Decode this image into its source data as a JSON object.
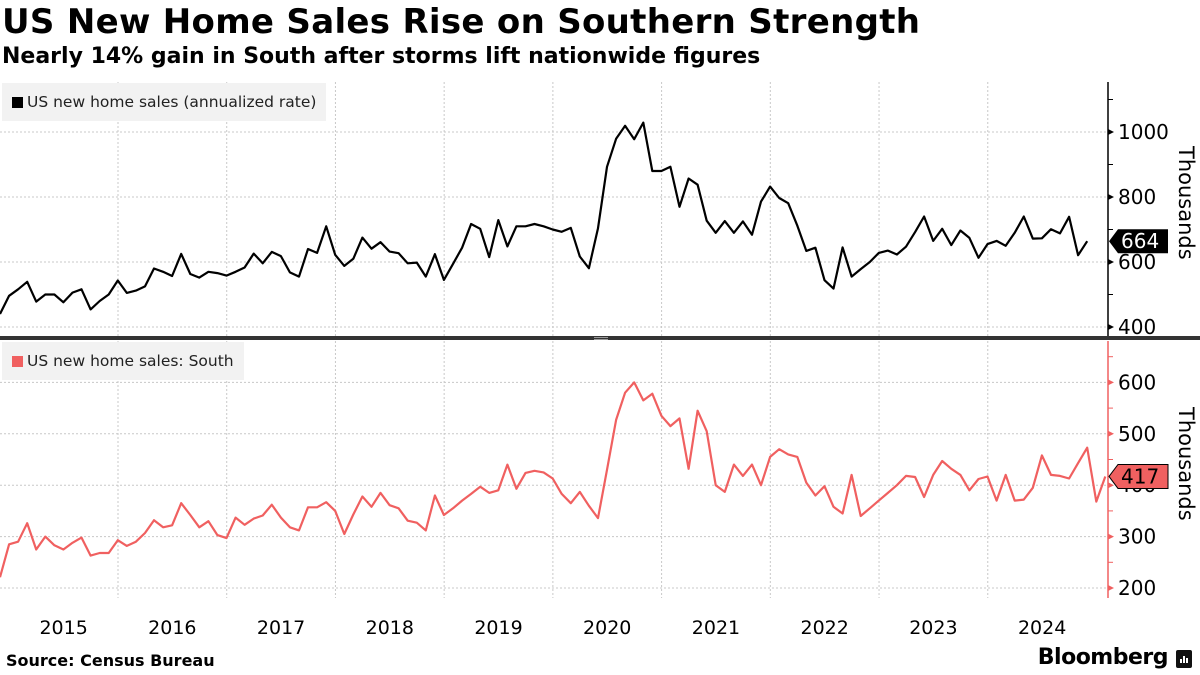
{
  "header": {
    "title": "US New Home Sales Rise on Southern Strength",
    "subtitle": "Nearly 14% gain in South after storms lift nationwide figures"
  },
  "footer": {
    "source": "Source: Census Bureau",
    "brand": "Bloomberg"
  },
  "colors": {
    "national": "#000000",
    "south": "#f06060",
    "grid": "#c8c8c8",
    "divider": "#333333"
  },
  "chart_data": [
    {
      "type": "line",
      "title": "US new home sales (annualized rate)",
      "legend": "US new home sales (annualized rate)",
      "legend_position": "top-left",
      "ylabel": "Thousands",
      "y_axis_side": "right",
      "ylim": [
        380,
        1140
      ],
      "yticks": [
        400,
        600,
        800,
        1000
      ],
      "grid": true,
      "x_start": "2014-12",
      "x_frequency": "monthly",
      "xticks": [
        "2015",
        "2016",
        "2017",
        "2018",
        "2019",
        "2020",
        "2021",
        "2022",
        "2023",
        "2024"
      ],
      "last_value_label": "664",
      "series": [
        {
          "name": "US new home sales (annualized rate)",
          "values": [
            440,
            496,
            516,
            539,
            478,
            500,
            500,
            476,
            506,
            516,
            454,
            480,
            500,
            543,
            505,
            512,
            525,
            580,
            570,
            557,
            625,
            563,
            552,
            570,
            566,
            558,
            570,
            583,
            626,
            596,
            631,
            618,
            568,
            555,
            640,
            628,
            710,
            622,
            588,
            610,
            675,
            641,
            661,
            632,
            627,
            596,
            598,
            555,
            624,
            545,
            594,
            644,
            717,
            702,
            615,
            729,
            648,
            710,
            710,
            717,
            710,
            700,
            693,
            705,
            617,
            581,
            704,
            893,
            979,
            1019,
            978,
            1029,
            880,
            880,
            893,
            770,
            857,
            838,
            727,
            690,
            726,
            690,
            725,
            684,
            786,
            832,
            797,
            781,
            712,
            634,
            644,
            544,
            518,
            645,
            555,
            578,
            600,
            628,
            635,
            623,
            647,
            692,
            740,
            665,
            702,
            652,
            697,
            674,
            613,
            655,
            665,
            650,
            690,
            740,
            672,
            673,
            701,
            688,
            739,
            621,
            664
          ]
        }
      ]
    },
    {
      "type": "line",
      "title": "US new home sales: South",
      "legend": "US new home sales: South",
      "legend_position": "top-left",
      "ylabel": "Thousands",
      "y_axis_side": "right",
      "ylim": [
        180,
        680
      ],
      "yticks": [
        200,
        300,
        400,
        500,
        600
      ],
      "grid": true,
      "x_start": "2014-12",
      "x_frequency": "monthly",
      "xticks": [
        "2015",
        "2016",
        "2017",
        "2018",
        "2019",
        "2020",
        "2021",
        "2022",
        "2023",
        "2024"
      ],
      "last_value_label": "417",
      "series": [
        {
          "name": "US new home sales: South",
          "values": [
            221,
            285,
            290,
            326,
            275,
            300,
            283,
            275,
            288,
            298,
            263,
            268,
            268,
            293,
            282,
            290,
            307,
            332,
            318,
            322,
            365,
            342,
            318,
            330,
            303,
            297,
            337,
            323,
            335,
            341,
            362,
            337,
            318,
            312,
            357,
            357,
            367,
            350,
            305,
            343,
            378,
            358,
            385,
            361,
            355,
            331,
            327,
            312,
            380,
            342,
            355,
            370,
            383,
            397,
            385,
            390,
            440,
            393,
            424,
            428,
            425,
            413,
            383,
            365,
            387,
            360,
            336,
            430,
            527,
            580,
            600,
            565,
            578,
            535,
            515,
            530,
            432,
            545,
            505,
            400,
            387,
            440,
            418,
            440,
            400,
            455,
            470,
            460,
            455,
            405,
            380,
            398,
            358,
            345,
            420,
            340,
            355,
            370,
            385,
            400,
            418,
            416,
            377,
            420,
            447,
            432,
            420,
            390,
            412,
            417,
            370,
            420,
            370,
            372,
            395,
            458,
            420,
            418,
            413,
            443,
            473,
            368,
            417
          ]
        }
      ]
    }
  ]
}
